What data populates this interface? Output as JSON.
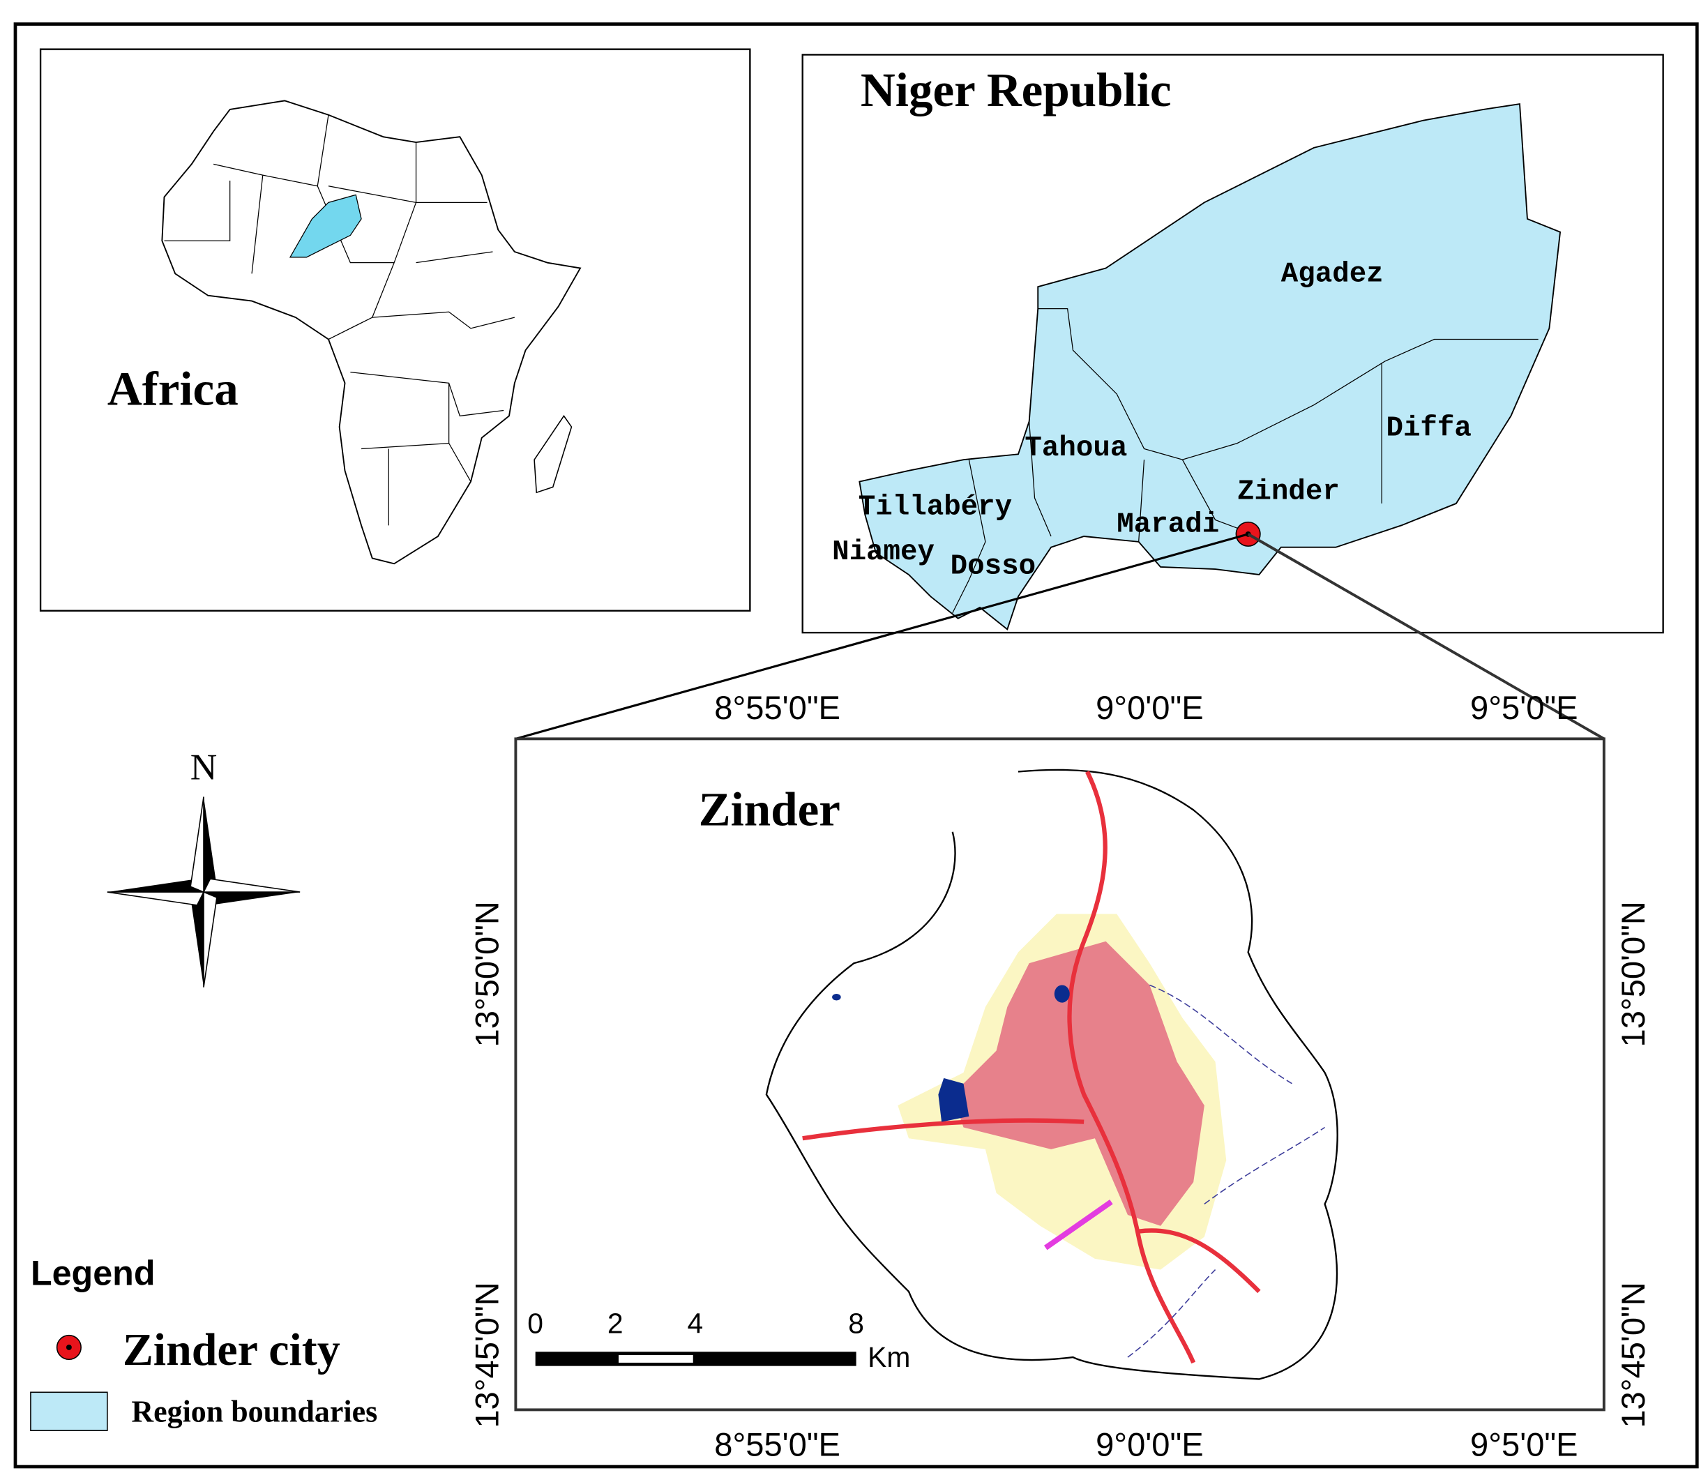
{
  "africa": {
    "title": "Africa"
  },
  "niger": {
    "title": "Niger Republic",
    "regions": [
      "Agadez",
      "Diffa",
      "Tahoua",
      "Zinder",
      "Tillabéry",
      "Maradi",
      "Niamey",
      "Dosso"
    ]
  },
  "zinder": {
    "title": "Zinder",
    "top_labels": [
      "8°55'0\"E",
      "9°0'0\"E",
      "9°5'0\"E"
    ],
    "bottom_labels": [
      "8°55'0\"E",
      "9°0'0\"E",
      "9°5'0\"E"
    ],
    "left_labels": [
      "13°50'0\"N",
      "13°45'0\"N"
    ],
    "right_labels": [
      "13°50'0\"N",
      "13°45'0\"N"
    ]
  },
  "north": "N",
  "scale": {
    "ticks": [
      0,
      2,
      4,
      8
    ],
    "unit": "Km"
  },
  "legend": {
    "title": "Legend",
    "items": [
      "Zinder city",
      "Region boundaries"
    ]
  }
}
